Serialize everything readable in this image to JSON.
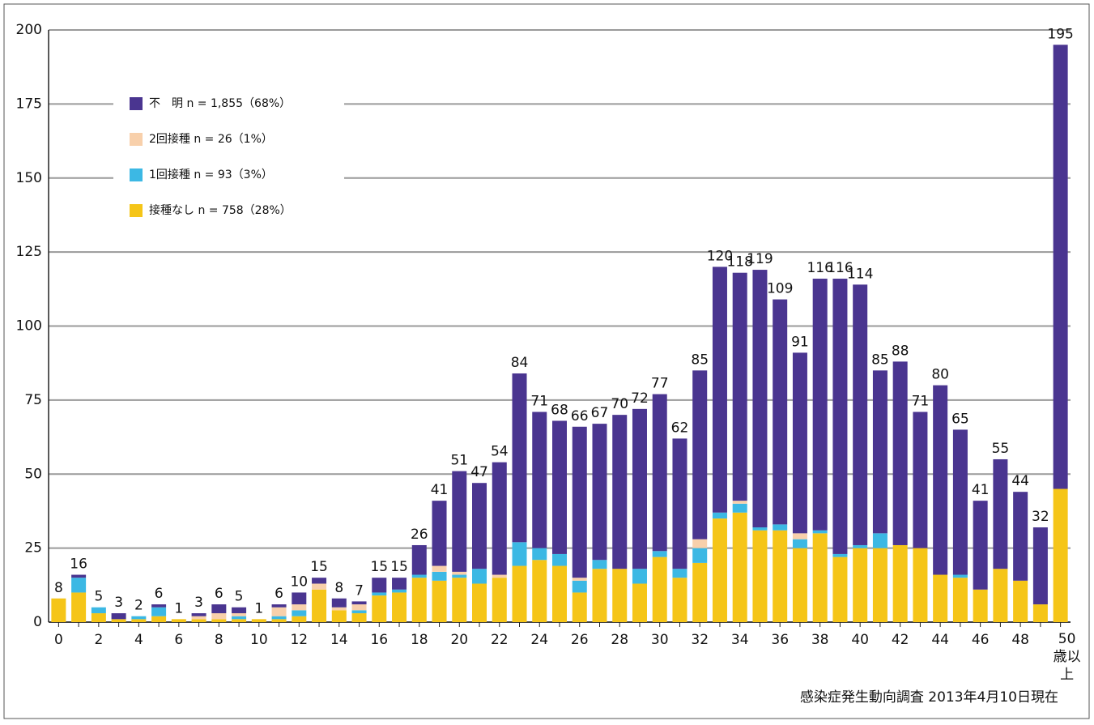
{
  "chart_data": {
    "type": "stacked_bar",
    "categories": [
      "0",
      null,
      "2",
      null,
      "4",
      null,
      "6",
      null,
      "8",
      null,
      "10",
      null,
      "12",
      null,
      "14",
      null,
      "16",
      null,
      "18",
      null,
      "20",
      null,
      "22",
      null,
      "24",
      null,
      "26",
      null,
      "28",
      null,
      "30",
      null,
      "32",
      null,
      "34",
      null,
      "36",
      null,
      "38",
      null,
      "40",
      null,
      "42",
      null,
      "44",
      null,
      "46",
      null,
      "48",
      null,
      "50歳以上"
    ],
    "series": [
      {
        "name": "接種なし n = 758（28%）",
        "color": "#f5c518",
        "values": [
          8,
          10,
          3,
          1,
          1,
          2,
          1,
          1,
          1,
          1,
          1,
          1,
          2,
          11,
          4,
          3,
          9,
          10,
          15,
          14,
          15,
          13,
          15,
          19,
          21,
          19,
          10,
          18,
          18,
          13,
          22,
          15,
          20,
          35,
          37,
          31,
          31,
          25,
          30,
          22,
          25,
          25,
          26,
          25,
          16,
          15,
          11,
          18,
          14,
          6,
          45
        ]
      },
      {
        "name": "1回接種 n = 93（3%）",
        "color": "#3cb8e4",
        "values": [
          0,
          5,
          2,
          0,
          1,
          3,
          0,
          0,
          0,
          1,
          0,
          1,
          2,
          0,
          0,
          1,
          1,
          1,
          1,
          3,
          1,
          5,
          0,
          8,
          4,
          4,
          4,
          3,
          0,
          5,
          2,
          3,
          5,
          2,
          3,
          1,
          2,
          3,
          1,
          1,
          1,
          5,
          0,
          0,
          0,
          1,
          0,
          0,
          0,
          0,
          0
        ]
      },
      {
        "name": "2回接種 n = 26（1%）",
        "color": "#f8d0ab",
        "values": [
          0,
          0,
          0,
          0,
          0,
          0,
          0,
          1,
          2,
          1,
          0,
          3,
          2,
          2,
          1,
          2,
          0,
          0,
          0,
          2,
          1,
          0,
          1,
          0,
          0,
          0,
          1,
          0,
          0,
          0,
          0,
          0,
          3,
          0,
          1,
          0,
          0,
          2,
          0,
          0,
          0,
          0,
          0,
          0,
          0,
          0,
          0,
          0,
          0,
          0,
          0
        ]
      },
      {
        "name": "不　明 n = 1,855（68%）",
        "color": "#4a3590",
        "values": [
          0,
          1,
          0,
          2,
          0,
          1,
          0,
          1,
          3,
          2,
          0,
          1,
          4,
          2,
          3,
          1,
          5,
          4,
          10,
          22,
          34,
          29,
          38,
          57,
          46,
          45,
          51,
          46,
          52,
          54,
          53,
          44,
          57,
          83,
          77,
          87,
          76,
          61,
          85,
          93,
          88,
          55,
          62,
          46,
          64,
          49,
          30,
          37,
          30,
          26,
          150
        ]
      }
    ],
    "totals": [
      8,
      16,
      5,
      3,
      2,
      6,
      1,
      3,
      6,
      5,
      1,
      6,
      10,
      15,
      8,
      7,
      15,
      15,
      26,
      41,
      51,
      47,
      54,
      84,
      71,
      68,
      66,
      67,
      70,
      72,
      77,
      62,
      85,
      120,
      118,
      119,
      109,
      91,
      116,
      116,
      114,
      85,
      88,
      71,
      80,
      65,
      41,
      55,
      44,
      32,
      195
    ],
    "ylim": [
      0,
      200
    ],
    "yticks": [
      0,
      25,
      50,
      75,
      100,
      125,
      150,
      175,
      200
    ],
    "grid": true,
    "legend": "upper-left",
    "source": "感染症発生動向調査 2013年4月10日現在"
  }
}
